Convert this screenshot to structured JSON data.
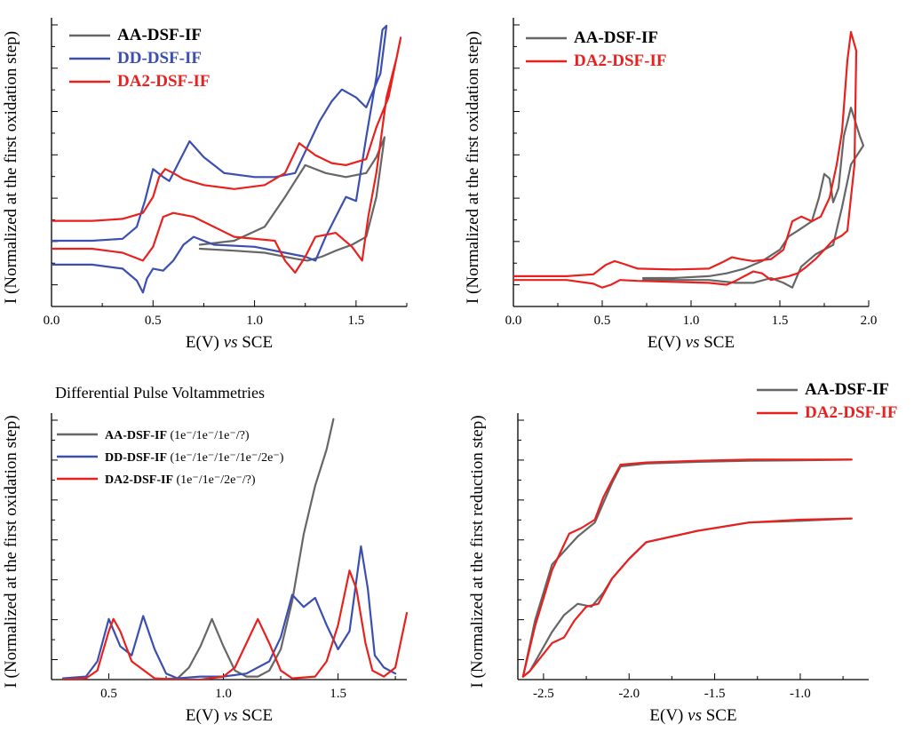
{
  "colors": {
    "AA": "#666666",
    "DD": "#3b4fb0",
    "DA2": "#e8211f"
  },
  "chart_data": [
    {
      "type": "line",
      "title": "",
      "xlabel_parts": [
        "E(V) ",
        "vs",
        " SCE"
      ],
      "ylabel": "I (Normalized at the first oxidation step)",
      "xlim": [
        0.0,
        1.75
      ],
      "xticks": [
        0.0,
        0.5,
        1.0,
        1.5
      ],
      "xtick_labels": [
        "0.0",
        "0.5",
        "1.0",
        "1.5"
      ],
      "legend": [
        {
          "key": "AA",
          "name": "AA-DSF-IF"
        },
        {
          "key": "DD",
          "name": "DD-DSF-IF"
        },
        {
          "key": "DA2",
          "name": "DA2-DSF-IF"
        }
      ],
      "series": [
        {
          "name": "AA-DSF-IF",
          "key": "AA",
          "x": [
            0.73,
            0.9,
            1.05,
            1.15,
            1.2,
            1.26,
            1.33,
            1.4,
            1.48,
            1.55,
            1.6,
            1.64,
            1.6,
            1.55,
            1.45,
            1.35,
            1.25,
            1.15,
            1.05,
            0.9,
            0.73
          ],
          "y": [
            0.84,
            0.83,
            0.82,
            0.8,
            0.79,
            0.78,
            0.8,
            0.83,
            0.86,
            0.9,
            1.1,
            1.4,
            1.3,
            1.22,
            1.2,
            1.22,
            1.26,
            1.1,
            0.95,
            0.88,
            0.86
          ]
        },
        {
          "name": "DD-DSF-IF",
          "key": "DD",
          "x": [
            0.0,
            0.2,
            0.35,
            0.42,
            0.46,
            0.5,
            0.55,
            0.58,
            0.62,
            0.68,
            0.75,
            0.85,
            1.0,
            1.1,
            1.2,
            1.26,
            1.32,
            1.38,
            1.43,
            1.5,
            1.55,
            1.62,
            1.65,
            1.63,
            1.6,
            1.55,
            1.5,
            1.45,
            1.4,
            1.35,
            1.3,
            1.25,
            1.15,
            1.0,
            0.8,
            0.7,
            0.65,
            0.6,
            0.55,
            0.5,
            0.47,
            0.45,
            0.42,
            0.35,
            0.2,
            0.0
          ],
          "y": [
            0.88,
            0.88,
            0.89,
            0.95,
            1.08,
            1.24,
            1.2,
            1.18,
            1.26,
            1.38,
            1.3,
            1.22,
            1.2,
            1.2,
            1.22,
            1.35,
            1.48,
            1.58,
            1.64,
            1.6,
            1.55,
            1.72,
            1.96,
            1.94,
            1.7,
            1.4,
            1.08,
            1.1,
            1.0,
            0.9,
            0.78,
            0.8,
            0.82,
            0.85,
            0.86,
            0.9,
            0.86,
            0.78,
            0.73,
            0.74,
            0.69,
            0.62,
            0.68,
            0.74,
            0.76,
            0.76
          ]
        },
        {
          "name": "DA2-DSF-IF",
          "key": "DA2",
          "x": [
            0.0,
            0.2,
            0.35,
            0.45,
            0.5,
            0.53,
            0.56,
            0.6,
            0.65,
            0.75,
            0.9,
            1.05,
            1.15,
            1.22,
            1.3,
            1.38,
            1.45,
            1.55,
            1.6,
            1.66,
            1.72,
            1.7,
            1.65,
            1.6,
            1.56,
            1.53,
            1.48,
            1.4,
            1.3,
            1.25,
            1.2,
            1.15,
            1.1,
            0.9,
            0.7,
            0.6,
            0.55,
            0.5,
            0.45,
            0.35,
            0.2,
            0.0
          ],
          "y": [
            0.98,
            0.98,
            0.99,
            1.02,
            1.1,
            1.2,
            1.24,
            1.22,
            1.19,
            1.16,
            1.14,
            1.16,
            1.22,
            1.37,
            1.31,
            1.27,
            1.26,
            1.29,
            1.45,
            1.6,
            1.9,
            1.8,
            1.6,
            1.22,
            1.0,
            0.78,
            0.85,
            0.92,
            0.9,
            0.8,
            0.72,
            0.78,
            0.88,
            0.9,
            1.0,
            1.02,
            1.0,
            0.85,
            0.78,
            0.82,
            0.84,
            0.84
          ]
        }
      ]
    },
    {
      "type": "line",
      "title": "",
      "xlabel_parts": [
        "E(V) ",
        "vs",
        " SCE"
      ],
      "ylabel": "I (Normalized at the first oxidation step)",
      "xlim": [
        0.0,
        2.0
      ],
      "xticks": [
        0.0,
        0.5,
        1.0,
        1.5,
        2.0
      ],
      "xtick_labels": [
        "0.0",
        "0.5",
        "1.0",
        "1.5",
        "2.0"
      ],
      "legend": [
        {
          "key": "AA",
          "name": "AA-DSF-IF"
        },
        {
          "key": "DA2",
          "name": "DA2-DSF-IF"
        }
      ],
      "series": [
        {
          "name": "AA-DSF-IF",
          "key": "AA",
          "x": [
            0.73,
            0.9,
            1.1,
            1.2,
            1.3,
            1.4,
            1.5,
            1.55,
            1.6,
            1.68,
            1.72,
            1.75,
            1.78,
            1.8,
            1.83,
            1.86,
            1.9,
            1.95,
            1.97,
            1.9,
            1.85,
            1.8,
            1.7,
            1.62,
            1.57,
            1.52,
            1.45,
            1.35,
            1.25,
            1.1,
            0.9,
            0.73
          ],
          "y": [
            0.0,
            0.0,
            0.02,
            0.05,
            0.1,
            0.18,
            0.3,
            0.44,
            0.5,
            0.6,
            0.85,
            1.1,
            1.05,
            0.8,
            0.95,
            1.5,
            1.8,
            1.5,
            1.4,
            1.2,
            0.75,
            0.35,
            0.25,
            0.12,
            -0.1,
            -0.05,
            0.0,
            -0.05,
            -0.05,
            -0.02,
            -0.02,
            -0.02
          ]
        },
        {
          "name": "DA2-DSF-IF",
          "key": "DA2",
          "x": [
            0.0,
            0.3,
            0.45,
            0.52,
            0.57,
            0.62,
            0.7,
            0.9,
            1.1,
            1.18,
            1.23,
            1.28,
            1.35,
            1.45,
            1.52,
            1.57,
            1.62,
            1.68,
            1.73,
            1.78,
            1.82,
            1.85,
            1.88,
            1.9,
            1.93,
            1.92,
            1.88,
            1.85,
            1.8,
            1.75,
            1.7,
            1.65,
            1.6,
            1.55,
            1.5,
            1.45,
            1.4,
            1.35,
            1.3,
            1.25,
            1.2,
            1.1,
            0.9,
            0.7,
            0.6,
            0.55,
            0.5,
            0.45,
            0.3,
            0.0
          ],
          "y": [
            0.02,
            0.02,
            0.04,
            0.14,
            0.18,
            0.15,
            0.1,
            0.09,
            0.1,
            0.17,
            0.22,
            0.2,
            0.18,
            0.2,
            0.3,
            0.6,
            0.65,
            0.6,
            0.65,
            0.85,
            1.2,
            1.55,
            2.3,
            2.6,
            2.4,
            1.2,
            0.5,
            0.45,
            0.4,
            0.3,
            0.2,
            0.12,
            0.05,
            0.02,
            0.0,
            -0.02,
            0.05,
            0.07,
            0.02,
            -0.03,
            -0.07,
            -0.05,
            -0.04,
            -0.03,
            -0.02,
            -0.07,
            -0.1,
            -0.06,
            -0.02,
            -0.02
          ]
        }
      ]
    },
    {
      "type": "line",
      "title": "Differential Pulse Voltammetries",
      "xlabel_parts": [
        "E(V) ",
        "vs",
        " SCE"
      ],
      "ylabel": "I (Normalized at the first oxidation step)",
      "xlim": [
        0.25,
        1.8
      ],
      "xticks": [
        0.5,
        1.0,
        1.5
      ],
      "xtick_labels": [
        "0.5",
        "1.0",
        "1.5"
      ],
      "legend": [
        {
          "key": "AA",
          "name": "AA-DSF-IF",
          "suffix": "(1e⁻/1e⁻/1e⁻/?)"
        },
        {
          "key": "DD",
          "name": "DD-DSF-IF",
          "suffix": "(1e⁻/1e⁻/1e⁻/1e⁻/2e⁻)"
        },
        {
          "key": "DA2",
          "name": "DA2-DSF-IF",
          "suffix": "(1e⁻/1e⁻/2e⁻/?)"
        }
      ],
      "series": [
        {
          "name": "AA-DSF-IF",
          "key": "AA",
          "x": [
            0.5,
            0.7,
            0.8,
            0.85,
            0.9,
            0.95,
            1.0,
            1.05,
            1.1,
            1.15,
            1.2,
            1.25,
            1.3,
            1.35,
            1.4,
            1.45,
            1.48
          ],
          "y": [
            0.0,
            0.0,
            0.02,
            0.2,
            0.55,
            1.0,
            0.55,
            0.15,
            0.05,
            0.05,
            0.15,
            0.5,
            1.3,
            2.4,
            3.2,
            3.8,
            4.3
          ]
        },
        {
          "name": "DD-DSF-IF",
          "key": "DD",
          "x": [
            0.3,
            0.4,
            0.45,
            0.5,
            0.55,
            0.6,
            0.65,
            0.7,
            0.75,
            0.8,
            0.9,
            1.0,
            1.1,
            1.2,
            1.25,
            1.3,
            1.35,
            1.4,
            1.45,
            1.5,
            1.55,
            1.6,
            1.63,
            1.66,
            1.7,
            1.75
          ],
          "y": [
            0.02,
            0.05,
            0.3,
            1.0,
            0.55,
            0.4,
            1.05,
            0.5,
            0.1,
            0.02,
            0.05,
            0.05,
            0.1,
            0.3,
            0.7,
            1.4,
            1.2,
            1.35,
            0.9,
            0.5,
            0.8,
            2.2,
            1.5,
            0.4,
            0.2,
            0.1
          ]
        },
        {
          "name": "DA2-DSF-IF",
          "key": "DA2",
          "x": [
            0.3,
            0.4,
            0.45,
            0.5,
            0.52,
            0.55,
            0.6,
            0.7,
            0.8,
            0.9,
            1.0,
            1.05,
            1.1,
            1.15,
            1.2,
            1.25,
            1.3,
            1.4,
            1.45,
            1.5,
            1.55,
            1.58,
            1.62,
            1.65,
            1.7,
            1.75,
            1.8
          ],
          "y": [
            0.0,
            0.02,
            0.15,
            0.8,
            1.0,
            0.8,
            0.3,
            0.02,
            0.0,
            0.0,
            0.05,
            0.2,
            0.6,
            1.0,
            0.6,
            0.15,
            0.02,
            0.05,
            0.3,
            0.9,
            1.8,
            1.5,
            0.6,
            0.15,
            0.05,
            0.2,
            1.1
          ]
        }
      ]
    },
    {
      "type": "line",
      "title": "",
      "xlabel_parts": [
        "E(V) ",
        "vs",
        " SCE"
      ],
      "ylabel": "I (Normalized at the first reduction step)",
      "xlim": [
        -2.65,
        -0.6
      ],
      "xticks": [
        -2.5,
        -2.0,
        -1.5,
        -1.0
      ],
      "xtick_labels": [
        "-2.5",
        "-2.0",
        "-1.5",
        "-1.0"
      ],
      "legend": [
        {
          "key": "AA",
          "name": "AA-DSF-IF"
        },
        {
          "key": "DA2",
          "name": "DA2-DSF-IF"
        }
      ],
      "series": [
        {
          "name": "AA-DSF-IF",
          "key": "AA",
          "x": [
            -0.7,
            -1.0,
            -1.3,
            -1.6,
            -1.9,
            -2.05,
            -2.1,
            -2.15,
            -2.2,
            -2.3,
            -2.45,
            -2.55,
            -2.62,
            -2.58,
            -2.45,
            -2.38,
            -2.3,
            -2.22,
            -2.15,
            -2.1,
            -2.0,
            -1.9,
            -1.6,
            -1.3,
            -1.0,
            -0.7
          ],
          "y": [
            -0.43,
            -0.44,
            -0.45,
            -0.47,
            -0.5,
            -0.55,
            -0.85,
            -1.2,
            -1.55,
            -1.8,
            -2.3,
            -3.3,
            -4.3,
            -4.2,
            -3.5,
            -3.2,
            -3.0,
            -3.05,
            -2.8,
            -2.55,
            -2.2,
            -1.9,
            -1.7,
            -1.55,
            -1.52,
            -1.48
          ]
        },
        {
          "name": "DA2-DSF-IF",
          "key": "DA2",
          "x": [
            -0.7,
            -1.0,
            -1.3,
            -1.6,
            -1.9,
            -2.05,
            -2.1,
            -2.15,
            -2.2,
            -2.28,
            -2.35,
            -2.45,
            -2.55,
            -2.62,
            -2.58,
            -2.45,
            -2.38,
            -2.32,
            -2.25,
            -2.18,
            -2.1,
            -2.0,
            -1.9,
            -1.6,
            -1.3,
            -1.0,
            -0.7
          ],
          "y": [
            -0.43,
            -0.43,
            -0.43,
            -0.45,
            -0.48,
            -0.52,
            -0.8,
            -1.1,
            -1.5,
            -1.65,
            -1.75,
            -2.4,
            -3.4,
            -4.3,
            -4.2,
            -3.7,
            -3.6,
            -3.3,
            -3.05,
            -3.0,
            -2.55,
            -2.2,
            -1.9,
            -1.7,
            -1.55,
            -1.5,
            -1.48
          ]
        }
      ]
    }
  ]
}
